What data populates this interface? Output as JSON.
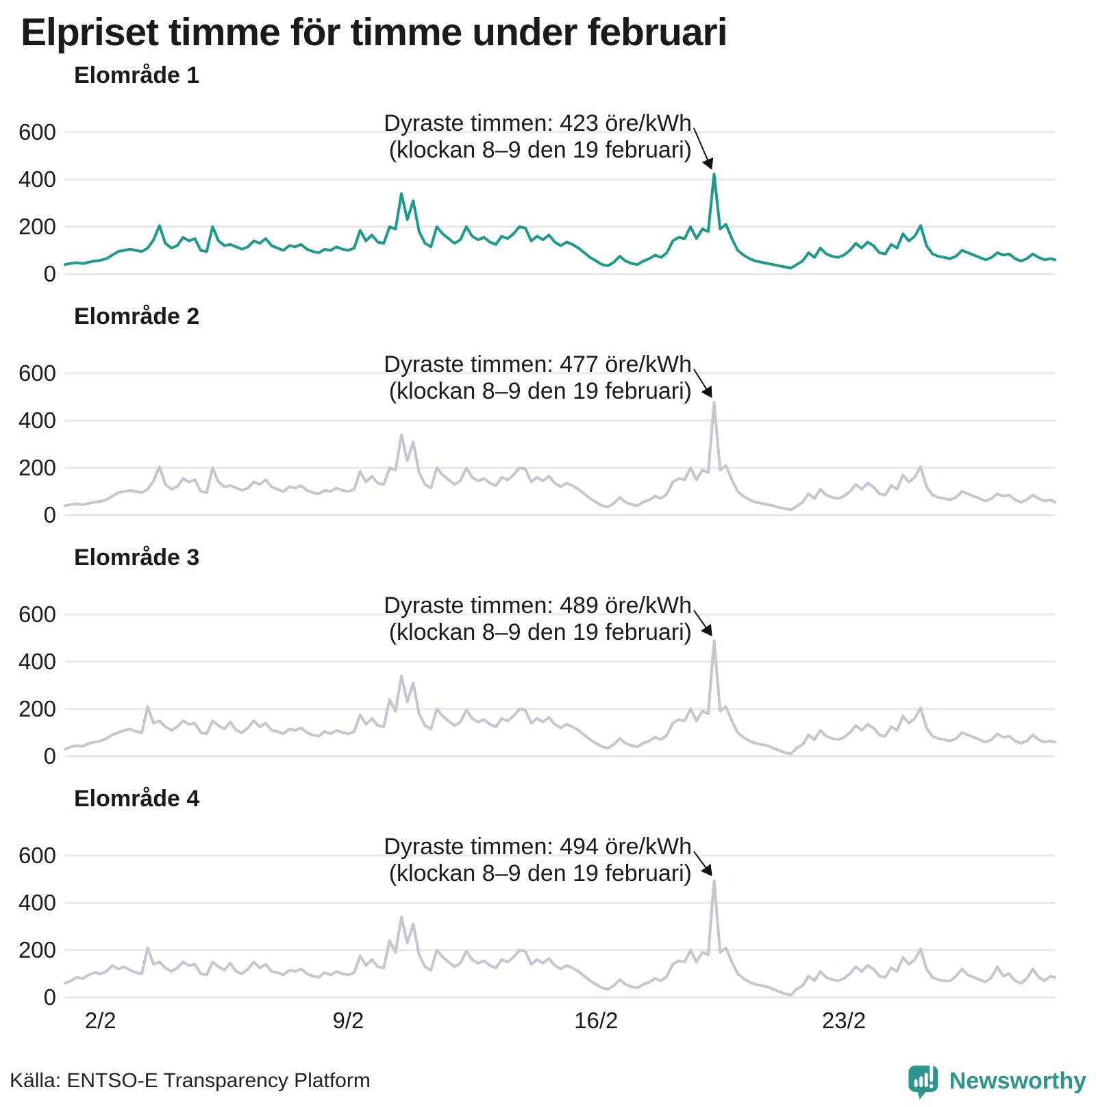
{
  "title": "Elpriset timme för timme under februari",
  "source": "Källa: ENTSO-E Transparency Platform",
  "brand": {
    "name": "Newsworthy",
    "color": "#2e958c",
    "icon": "chart-speech-bubble-icon"
  },
  "colors": {
    "highlight_line": "#1d9a8e",
    "muted_line": "#c7c5d2",
    "grid": "#e8e8e8",
    "text": "#1a1a1a",
    "arrow": "#111111"
  },
  "chart_data": {
    "type": "line",
    "title": "Elpriset timme för timme under februari",
    "unit": "öre/kWh",
    "x_unit": "timme i februari (timvärden, 1/2–28/2)",
    "x_hours_step": 4,
    "x_domain_hours": [
      0,
      671
    ],
    "y_ticks": [
      0,
      200,
      400,
      600
    ],
    "ylim": [
      0,
      640
    ],
    "grid": true,
    "legend": "none",
    "x_ticks": [
      {
        "hour": 24,
        "label": "2/2"
      },
      {
        "hour": 192,
        "label": "9/2"
      },
      {
        "hour": 360,
        "label": "16/2"
      },
      {
        "hour": 528,
        "label": "23/2"
      }
    ],
    "panels": [
      {
        "title": "Elområde 1",
        "annotation_line1": "Dyraste timmen: 423 öre/kWh",
        "annotation_line2": "(klockan 8–9 den 19 februari)",
        "max_value": 423,
        "max_hour": 440,
        "line_color": "#1d9a8e",
        "values": [
          40,
          45,
          48,
          44,
          50,
          55,
          58,
          65,
          80,
          95,
          100,
          105,
          100,
          95,
          110,
          145,
          205,
          130,
          110,
          120,
          155,
          140,
          150,
          100,
          95,
          200,
          140,
          120,
          125,
          115,
          105,
          115,
          140,
          130,
          150,
          120,
          110,
          100,
          120,
          115,
          125,
          105,
          95,
          90,
          105,
          100,
          115,
          105,
          100,
          110,
          185,
          140,
          165,
          135,
          130,
          200,
          190,
          340,
          230,
          310,
          180,
          130,
          115,
          200,
          170,
          150,
          130,
          145,
          200,
          160,
          145,
          155,
          135,
          125,
          160,
          150,
          170,
          200,
          195,
          140,
          160,
          145,
          165,
          135,
          120,
          135,
          125,
          110,
          90,
          70,
          55,
          40,
          35,
          50,
          75,
          55,
          45,
          40,
          55,
          65,
          80,
          70,
          90,
          140,
          155,
          150,
          200,
          150,
          190,
          180,
          423,
          190,
          210,
          150,
          100,
          80,
          65,
          55,
          50,
          45,
          40,
          35,
          30,
          25,
          40,
          55,
          90,
          70,
          110,
          85,
          75,
          70,
          80,
          100,
          130,
          110,
          135,
          120,
          90,
          85,
          125,
          110,
          170,
          140,
          160,
          205,
          120,
          85,
          75,
          70,
          65,
          75,
          100,
          90,
          80,
          70,
          60,
          70,
          90,
          80,
          85,
          65,
          55,
          65,
          85,
          70,
          60,
          65,
          60
        ]
      },
      {
        "title": "Elområde 2",
        "annotation_line1": "Dyraste timmen: 477 öre/kWh",
        "annotation_line2": "(klockan 8–9 den 19 februari)",
        "max_value": 477,
        "max_hour": 440,
        "line_color": "#c7c5d2",
        "values": [
          40,
          45,
          48,
          44,
          50,
          55,
          58,
          65,
          80,
          95,
          100,
          105,
          100,
          95,
          110,
          145,
          205,
          130,
          110,
          120,
          155,
          140,
          150,
          100,
          95,
          200,
          140,
          120,
          125,
          115,
          105,
          115,
          140,
          130,
          150,
          120,
          110,
          100,
          120,
          115,
          125,
          105,
          95,
          90,
          105,
          100,
          115,
          105,
          100,
          110,
          185,
          140,
          165,
          135,
          130,
          200,
          190,
          340,
          230,
          310,
          180,
          130,
          115,
          200,
          170,
          150,
          130,
          145,
          200,
          160,
          145,
          155,
          135,
          125,
          160,
          150,
          170,
          200,
          195,
          140,
          160,
          145,
          165,
          135,
          120,
          135,
          125,
          110,
          90,
          70,
          55,
          40,
          35,
          50,
          75,
          55,
          45,
          40,
          55,
          65,
          80,
          70,
          90,
          140,
          155,
          150,
          200,
          150,
          190,
          180,
          477,
          190,
          210,
          150,
          100,
          80,
          65,
          55,
          50,
          45,
          40,
          32,
          28,
          22,
          38,
          55,
          90,
          70,
          110,
          85,
          75,
          70,
          80,
          100,
          130,
          110,
          135,
          120,
          90,
          85,
          125,
          110,
          170,
          140,
          160,
          205,
          120,
          85,
          75,
          70,
          65,
          75,
          100,
          90,
          80,
          70,
          60,
          70,
          90,
          80,
          85,
          65,
          55,
          65,
          85,
          70,
          60,
          65,
          55
        ]
      },
      {
        "title": "Elområde 3",
        "annotation_line1": "Dyraste timmen: 489 öre/kWh",
        "annotation_line2": "(klockan 8–9 den 19 februari)",
        "max_value": 489,
        "max_hour": 440,
        "line_color": "#c7c5d2",
        "values": [
          30,
          40,
          45,
          42,
          55,
          60,
          65,
          75,
          90,
          100,
          110,
          115,
          105,
          100,
          210,
          140,
          150,
          125,
          110,
          125,
          150,
          135,
          140,
          100,
          95,
          150,
          130,
          115,
          145,
          110,
          100,
          120,
          150,
          125,
          140,
          110,
          105,
          95,
          115,
          110,
          120,
          100,
          90,
          85,
          105,
          95,
          110,
          100,
          95,
          105,
          175,
          135,
          160,
          130,
          125,
          240,
          190,
          340,
          230,
          310,
          180,
          130,
          115,
          200,
          170,
          150,
          130,
          145,
          195,
          160,
          145,
          155,
          135,
          125,
          160,
          150,
          170,
          200,
          195,
          140,
          160,
          145,
          165,
          135,
          120,
          135,
          125,
          110,
          90,
          70,
          55,
          40,
          35,
          50,
          75,
          55,
          45,
          40,
          55,
          65,
          80,
          70,
          90,
          140,
          155,
          150,
          200,
          150,
          190,
          180,
          489,
          190,
          210,
          150,
          100,
          80,
          65,
          55,
          50,
          45,
          35,
          25,
          15,
          10,
          35,
          50,
          90,
          70,
          110,
          85,
          75,
          70,
          80,
          100,
          130,
          110,
          135,
          120,
          90,
          85,
          125,
          110,
          170,
          140,
          160,
          205,
          120,
          85,
          75,
          70,
          65,
          75,
          100,
          90,
          80,
          70,
          60,
          70,
          95,
          80,
          85,
          65,
          55,
          65,
          90,
          70,
          60,
          65,
          60
        ]
      },
      {
        "title": "Elområde 4",
        "annotation_line1": "Dyraste timmen: 494 öre/kWh",
        "annotation_line2": "(klockan 8–9 den 19 februari)",
        "max_value": 494,
        "max_hour": 440,
        "line_color": "#c7c5d2",
        "values": [
          60,
          70,
          85,
          80,
          95,
          105,
          100,
          110,
          135,
          120,
          130,
          115,
          105,
          100,
          210,
          140,
          150,
          125,
          110,
          125,
          150,
          135,
          140,
          100,
          95,
          150,
          130,
          115,
          145,
          110,
          100,
          120,
          150,
          125,
          140,
          110,
          105,
          95,
          115,
          110,
          120,
          100,
          90,
          85,
          105,
          95,
          110,
          100,
          95,
          105,
          175,
          135,
          160,
          130,
          125,
          240,
          190,
          340,
          230,
          310,
          180,
          130,
          115,
          200,
          170,
          150,
          130,
          145,
          195,
          160,
          145,
          155,
          135,
          125,
          160,
          150,
          170,
          200,
          195,
          140,
          160,
          145,
          165,
          135,
          120,
          135,
          125,
          110,
          90,
          70,
          55,
          40,
          35,
          50,
          75,
          55,
          45,
          40,
          55,
          65,
          80,
          70,
          90,
          140,
          155,
          150,
          200,
          150,
          190,
          180,
          494,
          190,
          210,
          150,
          100,
          80,
          65,
          55,
          50,
          45,
          35,
          25,
          15,
          10,
          35,
          50,
          90,
          70,
          110,
          85,
          75,
          70,
          80,
          100,
          130,
          110,
          135,
          120,
          90,
          85,
          125,
          110,
          170,
          140,
          160,
          205,
          120,
          85,
          75,
          70,
          70,
          90,
          120,
          95,
          85,
          75,
          65,
          85,
          130,
          90,
          100,
          70,
          60,
          80,
          120,
          85,
          70,
          90,
          85
        ]
      }
    ]
  }
}
